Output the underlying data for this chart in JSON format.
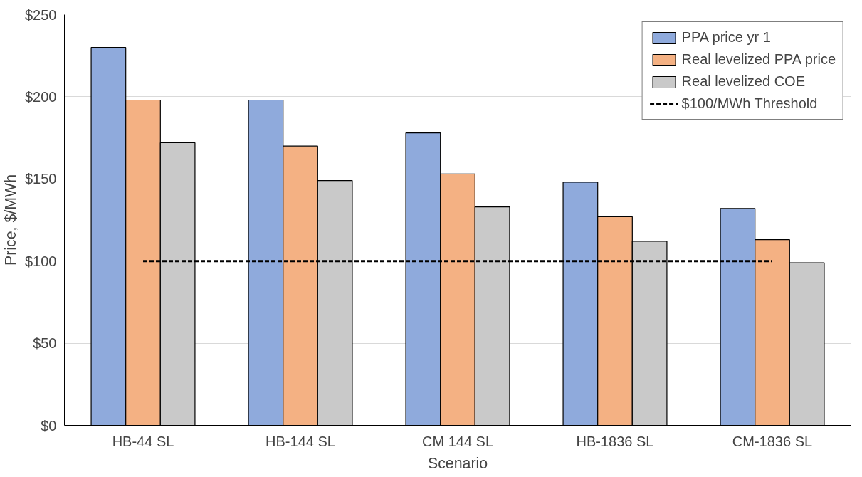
{
  "chart_data": {
    "type": "bar",
    "xlabel": "Scenario",
    "ylabel": "Price, $/MWh",
    "categories": [
      "HB-44 SL",
      "HB-144 SL",
      "CM 144 SL",
      "HB-1836 SL",
      "CM-1836 SL"
    ],
    "series": [
      {
        "name": "PPA price yr 1",
        "color": "#8faadc",
        "values": [
          230,
          198,
          178,
          148,
          132
        ]
      },
      {
        "name": "Real levelized PPA price",
        "color": "#f4b183",
        "values": [
          198,
          170,
          153,
          127,
          113
        ]
      },
      {
        "name": "Real levelized COE",
        "color": "#c9c9c9",
        "values": [
          172,
          149,
          133,
          112,
          99
        ]
      },
      {
        "name": "$100/MWh Threshold",
        "type": "line",
        "color": "#000000",
        "line_style": "dashed",
        "values": [
          100,
          100,
          100,
          100,
          100
        ]
      }
    ],
    "ylim": [
      0,
      250
    ],
    "yticks": [
      {
        "value": 0,
        "label": "$0"
      },
      {
        "value": 50,
        "label": "$50"
      },
      {
        "value": 100,
        "label": "$100"
      },
      {
        "value": 150,
        "label": "$150"
      },
      {
        "value": 200,
        "label": "$200"
      },
      {
        "value": 250,
        "label": "$250"
      }
    ],
    "grid": "y",
    "legend": "top right"
  }
}
